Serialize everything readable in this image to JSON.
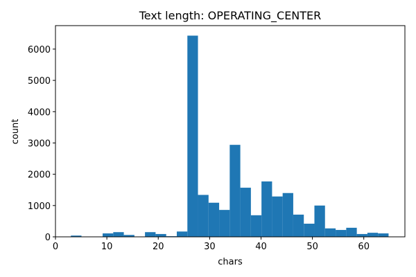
{
  "chart_data": {
    "type": "bar",
    "title": "Text length: OPERATING_CENTER",
    "xlabel": "chars",
    "ylabel": "count",
    "xlim": [
      0,
      68
    ],
    "ylim": [
      0,
      6750
    ],
    "x_ticks": [
      0,
      10,
      20,
      30,
      40,
      50,
      60
    ],
    "y_ticks": [
      0,
      1000,
      2000,
      3000,
      4000,
      5000,
      6000
    ],
    "bin_edges": [
      3,
      5.06,
      7.12,
      9.18,
      11.24,
      13.3,
      15.36,
      17.42,
      19.48,
      21.55,
      23.61,
      25.67,
      27.73,
      29.79,
      31.85,
      33.91,
      35.97,
      38.03,
      40.09,
      42.15,
      44.21,
      46.27,
      48.33,
      50.39,
      52.45,
      54.52,
      56.58,
      58.64,
      60.7,
      62.76,
      64.82
    ],
    "values": [
      40,
      0,
      0,
      110,
      150,
      60,
      0,
      150,
      90,
      20,
      170,
      6430,
      1340,
      1090,
      860,
      2940,
      1570,
      690,
      1770,
      1290,
      1400,
      710,
      420,
      1000,
      270,
      220,
      290,
      90,
      130,
      110
    ],
    "bar_color": "#1f77b4",
    "grid": false,
    "legend": "none"
  }
}
